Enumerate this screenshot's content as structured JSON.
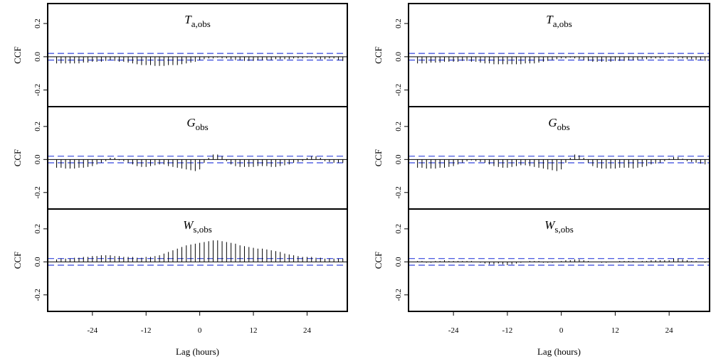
{
  "chart_data": [
    {
      "type": "ccf",
      "title": "T",
      "title_sub": "a,obs",
      "ylabel": "CCF",
      "x": [
        -32,
        -31,
        -30,
        -29,
        -28,
        -27,
        -26,
        -25,
        -24,
        -23,
        -22,
        -21,
        -20,
        -19,
        -18,
        -17,
        -16,
        -15,
        -14,
        -13,
        -12,
        -11,
        -10,
        -9,
        -8,
        -7,
        -6,
        -5,
        -4,
        -3,
        -2,
        -1,
        0,
        1,
        2,
        3,
        4,
        5,
        6,
        7,
        8,
        9,
        10,
        11,
        12,
        13,
        14,
        15,
        16,
        17,
        18,
        19,
        20,
        21,
        22,
        23,
        24,
        25,
        26,
        27,
        28,
        29,
        30,
        31,
        32
      ],
      "values": [
        -0.04,
        -0.04,
        -0.04,
        -0.04,
        -0.04,
        -0.04,
        -0.035,
        -0.035,
        -0.03,
        -0.03,
        -0.03,
        -0.025,
        -0.02,
        -0.025,
        -0.03,
        -0.03,
        -0.035,
        -0.04,
        -0.045,
        -0.05,
        -0.05,
        -0.05,
        -0.055,
        -0.055,
        -0.055,
        -0.05,
        -0.05,
        -0.05,
        -0.045,
        -0.04,
        -0.035,
        -0.03,
        -0.02,
        -0.015,
        -0.01,
        -0.01,
        -0.005,
        -0.01,
        -0.01,
        -0.015,
        -0.02,
        -0.02,
        -0.025,
        -0.025,
        -0.025,
        -0.02,
        -0.02,
        -0.02,
        -0.02,
        -0.015,
        -0.015,
        -0.015,
        -0.015,
        -0.01,
        -0.01,
        -0.01,
        -0.005,
        -0.005,
        -0.01,
        -0.015,
        -0.015,
        -0.01,
        -0.01,
        -0.02,
        -0.025
      ],
      "ci": 0.02,
      "xlim": [
        -34,
        33
      ],
      "ylim": [
        -0.3,
        0.32
      ],
      "yticks": [
        -0.2,
        {
          "value": 0,
          "label": "0.0"
        },
        0.2
      ]
    },
    {
      "type": "ccf",
      "title": "G",
      "title_sub": "obs",
      "ylabel": "CCF",
      "x": [
        -32,
        -31,
        -30,
        -29,
        -28,
        -27,
        -26,
        -25,
        -24,
        -23,
        -22,
        -21,
        -20,
        -19,
        -18,
        -17,
        -16,
        -15,
        -14,
        -13,
        -12,
        -11,
        -10,
        -9,
        -8,
        -7,
        -6,
        -5,
        -4,
        -3,
        -2,
        -1,
        0,
        1,
        2,
        3,
        4,
        5,
        6,
        7,
        8,
        9,
        10,
        11,
        12,
        13,
        14,
        15,
        16,
        17,
        18,
        19,
        20,
        21,
        22,
        23,
        24,
        25,
        26,
        27,
        28,
        29,
        30,
        31,
        32
      ],
      "values": [
        -0.05,
        -0.05,
        -0.055,
        -0.055,
        -0.055,
        -0.05,
        -0.05,
        -0.045,
        -0.04,
        -0.03,
        -0.02,
        -0.01,
        0.01,
        0.01,
        -0.005,
        -0.01,
        -0.02,
        -0.03,
        -0.04,
        -0.045,
        -0.045,
        -0.04,
        -0.035,
        -0.03,
        -0.03,
        -0.04,
        -0.045,
        -0.05,
        -0.055,
        -0.06,
        -0.065,
        -0.07,
        -0.06,
        -0.02,
        0.01,
        0.03,
        0.03,
        0.02,
        -0.01,
        -0.03,
        -0.04,
        -0.045,
        -0.045,
        -0.045,
        -0.045,
        -0.04,
        -0.04,
        -0.04,
        -0.045,
        -0.045,
        -0.04,
        -0.035,
        -0.03,
        -0.02,
        -0.015,
        -0.01,
        0.01,
        0.02,
        0.02,
        0.01,
        -0.01,
        -0.015,
        -0.02,
        -0.02,
        -0.02
      ],
      "ci": 0.02,
      "xlim": [
        -34,
        33
      ],
      "ylim": [
        -0.3,
        0.32
      ],
      "yticks": [
        -0.2,
        {
          "value": 0,
          "label": "0.0"
        },
        0.2
      ]
    },
    {
      "type": "ccf",
      "title": "W",
      "title_sub": "s,obs",
      "ylabel": "CCF",
      "xlabel": "Lag (hours)",
      "x": [
        -32,
        -31,
        -30,
        -29,
        -28,
        -27,
        -26,
        -25,
        -24,
        -23,
        -22,
        -21,
        -20,
        -19,
        -18,
        -17,
        -16,
        -15,
        -14,
        -13,
        -12,
        -11,
        -10,
        -9,
        -8,
        -7,
        -6,
        -5,
        -4,
        -3,
        -2,
        -1,
        0,
        1,
        2,
        3,
        4,
        5,
        6,
        7,
        8,
        9,
        10,
        11,
        12,
        13,
        14,
        15,
        16,
        17,
        18,
        19,
        20,
        21,
        22,
        23,
        24,
        25,
        26,
        27,
        28,
        29,
        30,
        31,
        32
      ],
      "values": [
        0.015,
        0.02,
        0.02,
        0.02,
        0.025,
        0.025,
        0.03,
        0.03,
        0.035,
        0.035,
        0.04,
        0.04,
        0.04,
        0.035,
        0.035,
        0.03,
        0.03,
        0.03,
        0.025,
        0.025,
        0.03,
        0.03,
        0.035,
        0.04,
        0.05,
        0.06,
        0.07,
        0.08,
        0.09,
        0.1,
        0.105,
        0.11,
        0.115,
        0.12,
        0.125,
        0.13,
        0.13,
        0.125,
        0.12,
        0.115,
        0.11,
        0.1,
        0.095,
        0.09,
        0.085,
        0.08,
        0.08,
        0.075,
        0.07,
        0.065,
        0.06,
        0.05,
        0.045,
        0.04,
        0.035,
        0.03,
        0.03,
        0.03,
        0.025,
        0.025,
        0.02,
        0.02,
        0.02,
        0.02,
        0.02
      ],
      "ci": 0.02,
      "xlim": [
        -34,
        33
      ],
      "ylim": [
        -0.3,
        0.32
      ],
      "yticks": [
        -0.2,
        {
          "value": 0,
          "label": "0.0"
        },
        0.2
      ],
      "xticks": [
        -24,
        -12,
        0,
        12,
        24
      ]
    },
    {
      "type": "ccf",
      "title": "T",
      "title_sub": "a,obs",
      "ylabel": "CCF",
      "x": [
        -32,
        -31,
        -30,
        -29,
        -28,
        -27,
        -26,
        -25,
        -24,
        -23,
        -22,
        -21,
        -20,
        -19,
        -18,
        -17,
        -16,
        -15,
        -14,
        -13,
        -12,
        -11,
        -10,
        -9,
        -8,
        -7,
        -6,
        -5,
        -4,
        -3,
        -2,
        -1,
        0,
        1,
        2,
        3,
        4,
        5,
        6,
        7,
        8,
        9,
        10,
        11,
        12,
        13,
        14,
        15,
        16,
        17,
        18,
        19,
        20,
        21,
        22,
        23,
        24,
        25,
        26,
        27,
        28,
        29,
        30,
        31,
        32
      ],
      "values": [
        -0.04,
        -0.04,
        -0.04,
        -0.035,
        -0.035,
        -0.035,
        -0.03,
        -0.03,
        -0.03,
        -0.03,
        -0.025,
        -0.025,
        -0.03,
        -0.03,
        -0.035,
        -0.04,
        -0.04,
        -0.045,
        -0.045,
        -0.045,
        -0.045,
        -0.045,
        -0.045,
        -0.045,
        -0.04,
        -0.04,
        -0.04,
        -0.035,
        -0.03,
        -0.025,
        -0.02,
        -0.015,
        -0.01,
        -0.01,
        -0.005,
        -0.01,
        -0.015,
        -0.02,
        -0.025,
        -0.03,
        -0.03,
        -0.03,
        -0.03,
        -0.03,
        -0.025,
        -0.025,
        -0.025,
        -0.02,
        -0.02,
        -0.02,
        -0.015,
        -0.015,
        -0.01,
        -0.01,
        -0.01,
        -0.005,
        -0.005,
        -0.005,
        -0.01,
        -0.01,
        -0.015,
        -0.015,
        -0.02,
        -0.02,
        -0.025
      ],
      "ci": 0.02,
      "xlim": [
        -34,
        33
      ],
      "ylim": [
        -0.3,
        0.32
      ],
      "yticks": [
        -0.2,
        {
          "value": 0,
          "label": "0.0"
        },
        0.2
      ]
    },
    {
      "type": "ccf",
      "title": "G",
      "title_sub": "obs",
      "ylabel": "CCF",
      "x": [
        -32,
        -31,
        -30,
        -29,
        -28,
        -27,
        -26,
        -25,
        -24,
        -23,
        -22,
        -21,
        -20,
        -19,
        -18,
        -17,
        -16,
        -15,
        -14,
        -13,
        -12,
        -11,
        -10,
        -9,
        -8,
        -7,
        -6,
        -5,
        -4,
        -3,
        -2,
        -1,
        0,
        1,
        2,
        3,
        4,
        5,
        6,
        7,
        8,
        9,
        10,
        11,
        12,
        13,
        14,
        15,
        16,
        17,
        18,
        19,
        20,
        21,
        22,
        23,
        24,
        25,
        26,
        27,
        28,
        29,
        30,
        31,
        32
      ],
      "values": [
        -0.05,
        -0.05,
        -0.055,
        -0.055,
        -0.055,
        -0.05,
        -0.05,
        -0.045,
        -0.04,
        -0.03,
        -0.02,
        -0.01,
        -0.005,
        -0.01,
        -0.015,
        -0.02,
        -0.03,
        -0.04,
        -0.045,
        -0.05,
        -0.05,
        -0.045,
        -0.04,
        -0.035,
        -0.035,
        -0.04,
        -0.045,
        -0.05,
        -0.055,
        -0.06,
        -0.065,
        -0.07,
        -0.06,
        -0.02,
        0.01,
        0.03,
        0.025,
        0.01,
        -0.02,
        -0.04,
        -0.05,
        -0.055,
        -0.055,
        -0.055,
        -0.055,
        -0.05,
        -0.05,
        -0.05,
        -0.055,
        -0.05,
        -0.045,
        -0.04,
        -0.03,
        -0.025,
        -0.02,
        -0.01,
        0.005,
        0.015,
        0.015,
        0.005,
        -0.01,
        -0.015,
        -0.02,
        -0.025,
        -0.03
      ],
      "ci": 0.02,
      "xlim": [
        -34,
        33
      ],
      "ylim": [
        -0.3,
        0.32
      ],
      "yticks": [
        -0.2,
        {
          "value": 0,
          "label": "0.0"
        },
        0.2
      ]
    },
    {
      "type": "ccf",
      "title": "W",
      "title_sub": "s,obs",
      "ylabel": "CCF",
      "xlabel": "Lag (hours)",
      "x": [
        -32,
        -31,
        -30,
        -29,
        -28,
        -27,
        -26,
        -25,
        -24,
        -23,
        -22,
        -21,
        -20,
        -19,
        -18,
        -17,
        -16,
        -15,
        -14,
        -13,
        -12,
        -11,
        -10,
        -9,
        -8,
        -7,
        -6,
        -5,
        -4,
        -3,
        -2,
        -1,
        0,
        1,
        2,
        3,
        4,
        5,
        6,
        7,
        8,
        9,
        10,
        11,
        12,
        13,
        14,
        15,
        16,
        17,
        18,
        19,
        20,
        21,
        22,
        23,
        24,
        25,
        26,
        27,
        28,
        29,
        30,
        31,
        32
      ],
      "values": [
        0.005,
        0.005,
        -0.005,
        -0.005,
        0.005,
        0.005,
        0.01,
        0.005,
        0.005,
        0.005,
        0.005,
        0.005,
        0.005,
        0.0,
        -0.005,
        -0.01,
        -0.015,
        -0.015,
        -0.01,
        -0.015,
        -0.02,
        -0.015,
        -0.01,
        -0.005,
        0.0,
        0.005,
        0.005,
        0.005,
        -0.005,
        -0.005,
        -0.005,
        0.0,
        0.005,
        0.01,
        0.01,
        0.015,
        0.015,
        0.01,
        0.005,
        0.0,
        0.0,
        -0.005,
        -0.005,
        0.0,
        0.0,
        0.005,
        0.005,
        0.005,
        0.005,
        0.0,
        0.005,
        0.005,
        0.01,
        0.01,
        0.01,
        0.01,
        0.01,
        0.02,
        0.02,
        0.015,
        0.01,
        0.005,
        0.005,
        0.0,
        -0.005
      ],
      "ci": 0.02,
      "xlim": [
        -34,
        33
      ],
      "ylim": [
        -0.3,
        0.32
      ],
      "yticks": [
        -0.2,
        {
          "value": 0,
          "label": "0.0"
        },
        0.2
      ],
      "xticks": [
        -24,
        -12,
        0,
        12,
        24
      ]
    }
  ]
}
